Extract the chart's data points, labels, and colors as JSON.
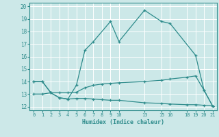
{
  "xlabel": "Humidex (Indice chaleur)",
  "bg_color": "#cce8e8",
  "grid_color": "#ffffff",
  "line_color": "#2d8b8b",
  "xlim": [
    -0.5,
    21.5
  ],
  "ylim": [
    11.7,
    20.3
  ],
  "xticks": [
    0,
    1,
    2,
    3,
    4,
    5,
    6,
    7,
    8,
    9,
    10,
    13,
    15,
    16,
    18,
    19,
    20,
    21
  ],
  "yticks": [
    12,
    13,
    14,
    15,
    16,
    17,
    18,
    19,
    20
  ],
  "line1": {
    "x": [
      0,
      1,
      2,
      3,
      4,
      5,
      6,
      7,
      9,
      10,
      13,
      15,
      16,
      19,
      20,
      21
    ],
    "y": [
      14.0,
      14.0,
      13.1,
      12.7,
      12.6,
      13.7,
      16.5,
      17.2,
      18.8,
      17.2,
      19.7,
      18.8,
      18.65,
      16.1,
      13.3,
      12.05
    ]
  },
  "line2": {
    "x": [
      0,
      1,
      2,
      3,
      4,
      5,
      6,
      7,
      8,
      9,
      10,
      13,
      15,
      16,
      18,
      19,
      20,
      21
    ],
    "y": [
      14.0,
      14.0,
      13.1,
      13.1,
      13.1,
      13.15,
      13.5,
      13.7,
      13.8,
      13.85,
      13.9,
      14.0,
      14.1,
      14.2,
      14.35,
      14.45,
      13.3,
      12.05
    ]
  },
  "line3": {
    "x": [
      0,
      1,
      2,
      3,
      4,
      5,
      6,
      7,
      8,
      9,
      10,
      13,
      15,
      16,
      18,
      19,
      20,
      21
    ],
    "y": [
      13.0,
      13.0,
      13.1,
      12.7,
      12.6,
      12.65,
      12.65,
      12.6,
      12.55,
      12.5,
      12.5,
      12.3,
      12.25,
      12.2,
      12.15,
      12.15,
      12.1,
      12.05
    ]
  }
}
